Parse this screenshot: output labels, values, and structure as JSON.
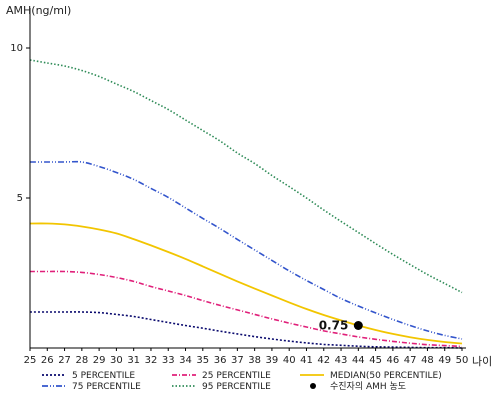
{
  "colors": {
    "p5": "#0a0a6e",
    "p25": "#e0207a",
    "median": "#f2c500",
    "p75": "#3355cc",
    "p95": "#2e8b57",
    "point": "#000000",
    "axis": "#000000"
  },
  "chart_data": {
    "type": "line",
    "title": "",
    "ylabel": "AMH(ng/ml)",
    "xlabel": "나이",
    "xlim": [
      25,
      50
    ],
    "ylim": [
      0,
      11
    ],
    "yticks": [
      5,
      10
    ],
    "x": [
      25,
      26,
      27,
      28,
      29,
      30,
      31,
      32,
      33,
      34,
      35,
      36,
      37,
      38,
      39,
      40,
      41,
      42,
      43,
      44,
      45,
      46,
      47,
      48,
      49,
      50
    ],
    "x_tick_labels": [
      "25",
      "26",
      "27",
      "28",
      "29",
      "30",
      "31",
      "32",
      "33",
      "34",
      "35",
      "36",
      "37",
      "38",
      "39",
      "40",
      "41",
      "42",
      "43",
      "44",
      "45",
      "46",
      "47",
      "48",
      "49",
      "50"
    ],
    "series": [
      {
        "key": "p5",
        "name": "5 PERCENTILE",
        "dash": "2,2",
        "values": [
          1.2,
          1.2,
          1.2,
          1.2,
          1.18,
          1.12,
          1.05,
          0.95,
          0.85,
          0.75,
          0.66,
          0.56,
          0.47,
          0.38,
          0.3,
          0.23,
          0.17,
          0.12,
          0.09,
          0.06,
          0.04,
          0.03,
          0.02,
          0.01,
          0.01,
          0.0
        ]
      },
      {
        "key": "p25",
        "name": "25 PERCENTILE",
        "dash": "5,2,1,2",
        "values": [
          2.55,
          2.55,
          2.55,
          2.52,
          2.45,
          2.35,
          2.22,
          2.05,
          1.9,
          1.75,
          1.58,
          1.42,
          1.27,
          1.12,
          0.97,
          0.83,
          0.7,
          0.57,
          0.47,
          0.37,
          0.29,
          0.22,
          0.16,
          0.11,
          0.08,
          0.05
        ]
      },
      {
        "key": "median",
        "name": "MEDIAN(50 PERCENTILE)",
        "dash": "",
        "values": [
          4.15,
          4.15,
          4.12,
          4.05,
          3.95,
          3.82,
          3.63,
          3.42,
          3.2,
          2.97,
          2.72,
          2.47,
          2.22,
          1.98,
          1.75,
          1.52,
          1.3,
          1.1,
          0.92,
          0.75,
          0.6,
          0.47,
          0.36,
          0.27,
          0.2,
          0.15
        ]
      },
      {
        "key": "p75",
        "name": "75 PERCENTILE",
        "dash": "6,2,1,2,1,2",
        "values": [
          6.2,
          6.2,
          6.2,
          6.2,
          6.05,
          5.85,
          5.62,
          5.32,
          5.02,
          4.67,
          4.32,
          3.98,
          3.62,
          3.27,
          2.92,
          2.57,
          2.25,
          1.95,
          1.65,
          1.4,
          1.17,
          0.95,
          0.75,
          0.57,
          0.42,
          0.3
        ]
      },
      {
        "key": "p95",
        "name": "95 PERCENTILE",
        "dash": "1.5,2",
        "values": [
          9.6,
          9.5,
          9.4,
          9.25,
          9.05,
          8.8,
          8.55,
          8.25,
          7.95,
          7.6,
          7.25,
          6.9,
          6.5,
          6.15,
          5.75,
          5.38,
          5.0,
          4.6,
          4.22,
          3.85,
          3.48,
          3.12,
          2.78,
          2.45,
          2.15,
          1.85
        ]
      }
    ],
    "highlight_point": {
      "x": 44,
      "y": 0.75,
      "label": "0.75",
      "legend": "수진자의 AMH 농도"
    },
    "legend_position": "bottom"
  }
}
